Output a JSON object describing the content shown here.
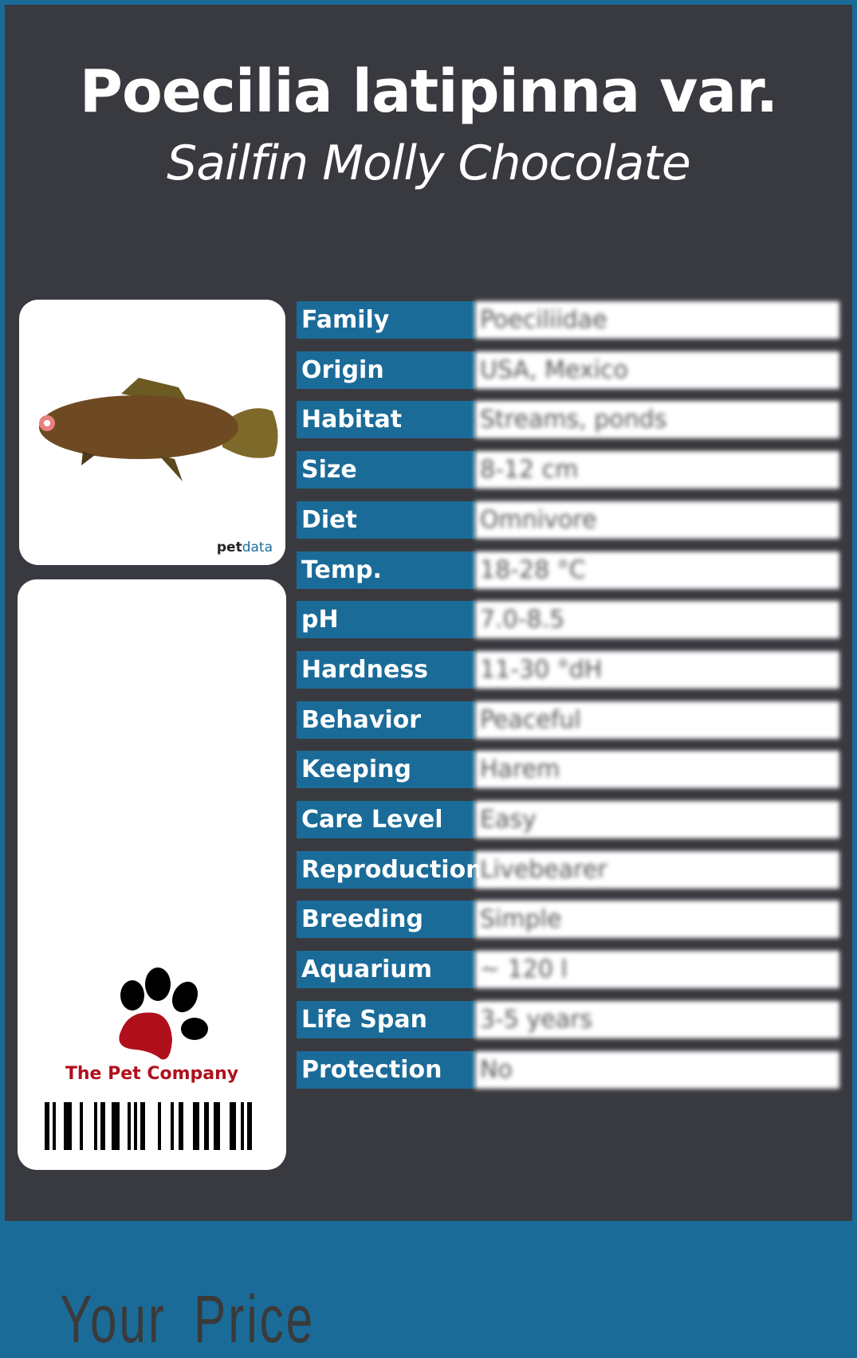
{
  "header": {
    "title": "Poecilia latipinna var.",
    "subtitle": "Sailfin Molly Chocolate"
  },
  "photo": {
    "logo_pet": "pet",
    "logo_data": "data"
  },
  "price": {
    "label": "Your Price"
  },
  "brand": {
    "name": "The Pet Company",
    "paw_color": "#b0101c"
  },
  "colors": {
    "accent": "#1b6b98",
    "background": "#393a3f"
  },
  "rows": [
    {
      "label": "Family",
      "value": "Poeciliidae"
    },
    {
      "label": "Origin",
      "value": "USA, Mexico"
    },
    {
      "label": "Habitat",
      "value": "Streams, ponds"
    },
    {
      "label": "Size",
      "value": "8-12 cm"
    },
    {
      "label": "Diet",
      "value": "Omnivore"
    },
    {
      "label": "Temp.",
      "value": "18-28 °C"
    },
    {
      "label": "pH",
      "value": "7.0-8.5"
    },
    {
      "label": "Hardness",
      "value": "11-30 °dH"
    },
    {
      "label": "Behavior",
      "value": "Peaceful"
    },
    {
      "label": "Keeping",
      "value": "Harem"
    },
    {
      "label": "Care Level",
      "value": "Easy"
    },
    {
      "label": "Reproduction",
      "value": "Livebearer"
    },
    {
      "label": "Breeding",
      "value": "Simple"
    },
    {
      "label": "Aquarium",
      "value": "~ 120 l"
    },
    {
      "label": "Life Span",
      "value": "3-5 years"
    },
    {
      "label": "Protection",
      "value": "No"
    }
  ]
}
